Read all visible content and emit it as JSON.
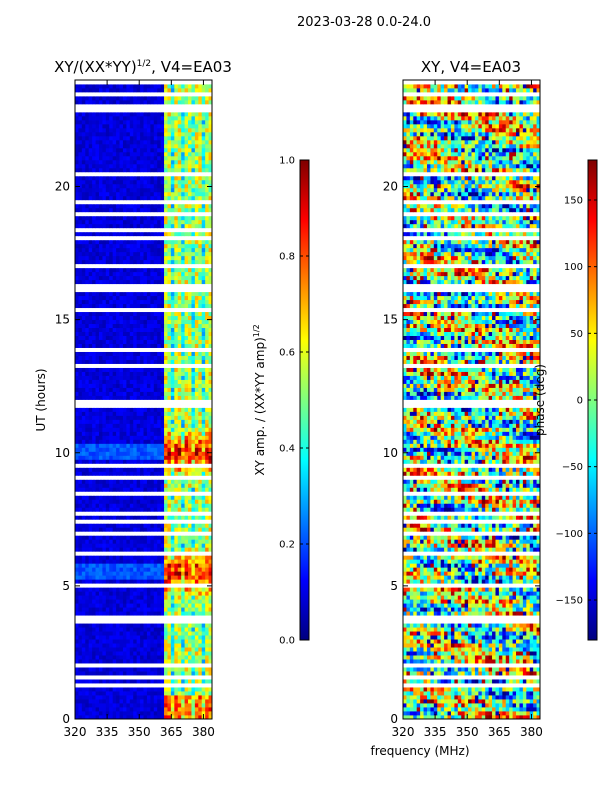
{
  "suptitle": "2023-03-28 0.0-24.0",
  "colors": {
    "cmap": [
      "#00007f",
      "#0000ff",
      "#007fff",
      "#00ffff",
      "#7fff7f",
      "#ffff00",
      "#ff7f00",
      "#ff0000",
      "#7f0000"
    ]
  },
  "chart_data": [
    {
      "type": "heatmap",
      "title_base": "XY/(XX*YY)",
      "title_sup": "1/2",
      "title_rest": ", V4=EA03",
      "xlabel": "",
      "ylabel": "UT (hours)",
      "xlim": [
        320,
        384
      ],
      "ylim": [
        0,
        24
      ],
      "xticks": [
        "320",
        "335",
        "350",
        "365",
        "380"
      ],
      "xtick_values": [
        320,
        335,
        350,
        365,
        380
      ],
      "yticks": [
        "0",
        "5",
        "10",
        "15",
        "20"
      ],
      "ytick_values": [
        0,
        5,
        10,
        15,
        20
      ],
      "colorbar": {
        "label_base": "XY amp. / (XX*YY amp)",
        "label_sup": "1/2",
        "range": [
          0.0,
          1.0
        ],
        "ticks": [
          "0.0",
          "0.2",
          "0.4",
          "0.6",
          "0.8",
          "1.0"
        ],
        "tick_values": [
          0.0,
          0.2,
          0.4,
          0.6,
          0.8,
          1.0
        ]
      },
      "description_values": {
        "background_low_freq_level": 0.05,
        "high_freq_band_mhz": [
          361,
          383
        ],
        "high_freq_band_level": 0.55,
        "peak_hours": [
          5.5,
          10.0
        ],
        "peak_level": 0.9,
        "flagged_hours": [
          0.45,
          0.9,
          1.3,
          1.55,
          2.0,
          2.55,
          3.0,
          3.45,
          3.7,
          3.85,
          4.2,
          4.5,
          5.05,
          6.2,
          6.6,
          7.0,
          7.4,
          7.7,
          8.1,
          8.5,
          9.1,
          9.55,
          10.8,
          11.4,
          11.75,
          11.9,
          12.3,
          13.3,
          13.5,
          13.9,
          14.7,
          15.4,
          16.1,
          16.3,
          17.0,
          17.7,
          18.1,
          18.4,
          19.0,
          19.4,
          20.5,
          21.3,
          22.2,
          22.9,
          23.0,
          23.45,
          23.9
        ]
      }
    },
    {
      "type": "heatmap",
      "title_base": "XY, V4=EA03",
      "xlabel": "frequency (MHz)",
      "ylabel": "",
      "xlim": [
        320,
        384
      ],
      "ylim": [
        0,
        24
      ],
      "xticks": [
        "320",
        "335",
        "350",
        "365",
        "380"
      ],
      "xtick_values": [
        320,
        335,
        350,
        365,
        380
      ],
      "yticks": [
        "0",
        "5",
        "10",
        "15",
        "20"
      ],
      "ytick_values": [
        0,
        5,
        10,
        15,
        20
      ],
      "colorbar": {
        "label_base": "phase (deg)",
        "range": [
          -180,
          180
        ],
        "ticks": [
          "−150",
          "−100",
          "−50",
          "0",
          "50",
          "100",
          "150"
        ],
        "tick_values": [
          -150,
          -100,
          -50,
          0,
          50,
          100,
          150
        ]
      },
      "description_values": {
        "dominant_phase_deg": 0,
        "flagged_hours": [
          0.45,
          0.9,
          1.3,
          1.55,
          2.0,
          2.55,
          3.0,
          3.45,
          3.7,
          3.85,
          4.2,
          4.5,
          5.05,
          6.2,
          6.6,
          7.0,
          7.4,
          7.7,
          8.1,
          8.5,
          9.1,
          9.55,
          10.8,
          11.4,
          11.75,
          11.9,
          12.3,
          13.3,
          13.5,
          13.9,
          14.7,
          15.4,
          16.1,
          16.3,
          17.0,
          17.7,
          18.1,
          18.4,
          19.0,
          19.4,
          20.5,
          21.3,
          22.2,
          22.9,
          23.0,
          23.45,
          23.9
        ]
      }
    }
  ]
}
